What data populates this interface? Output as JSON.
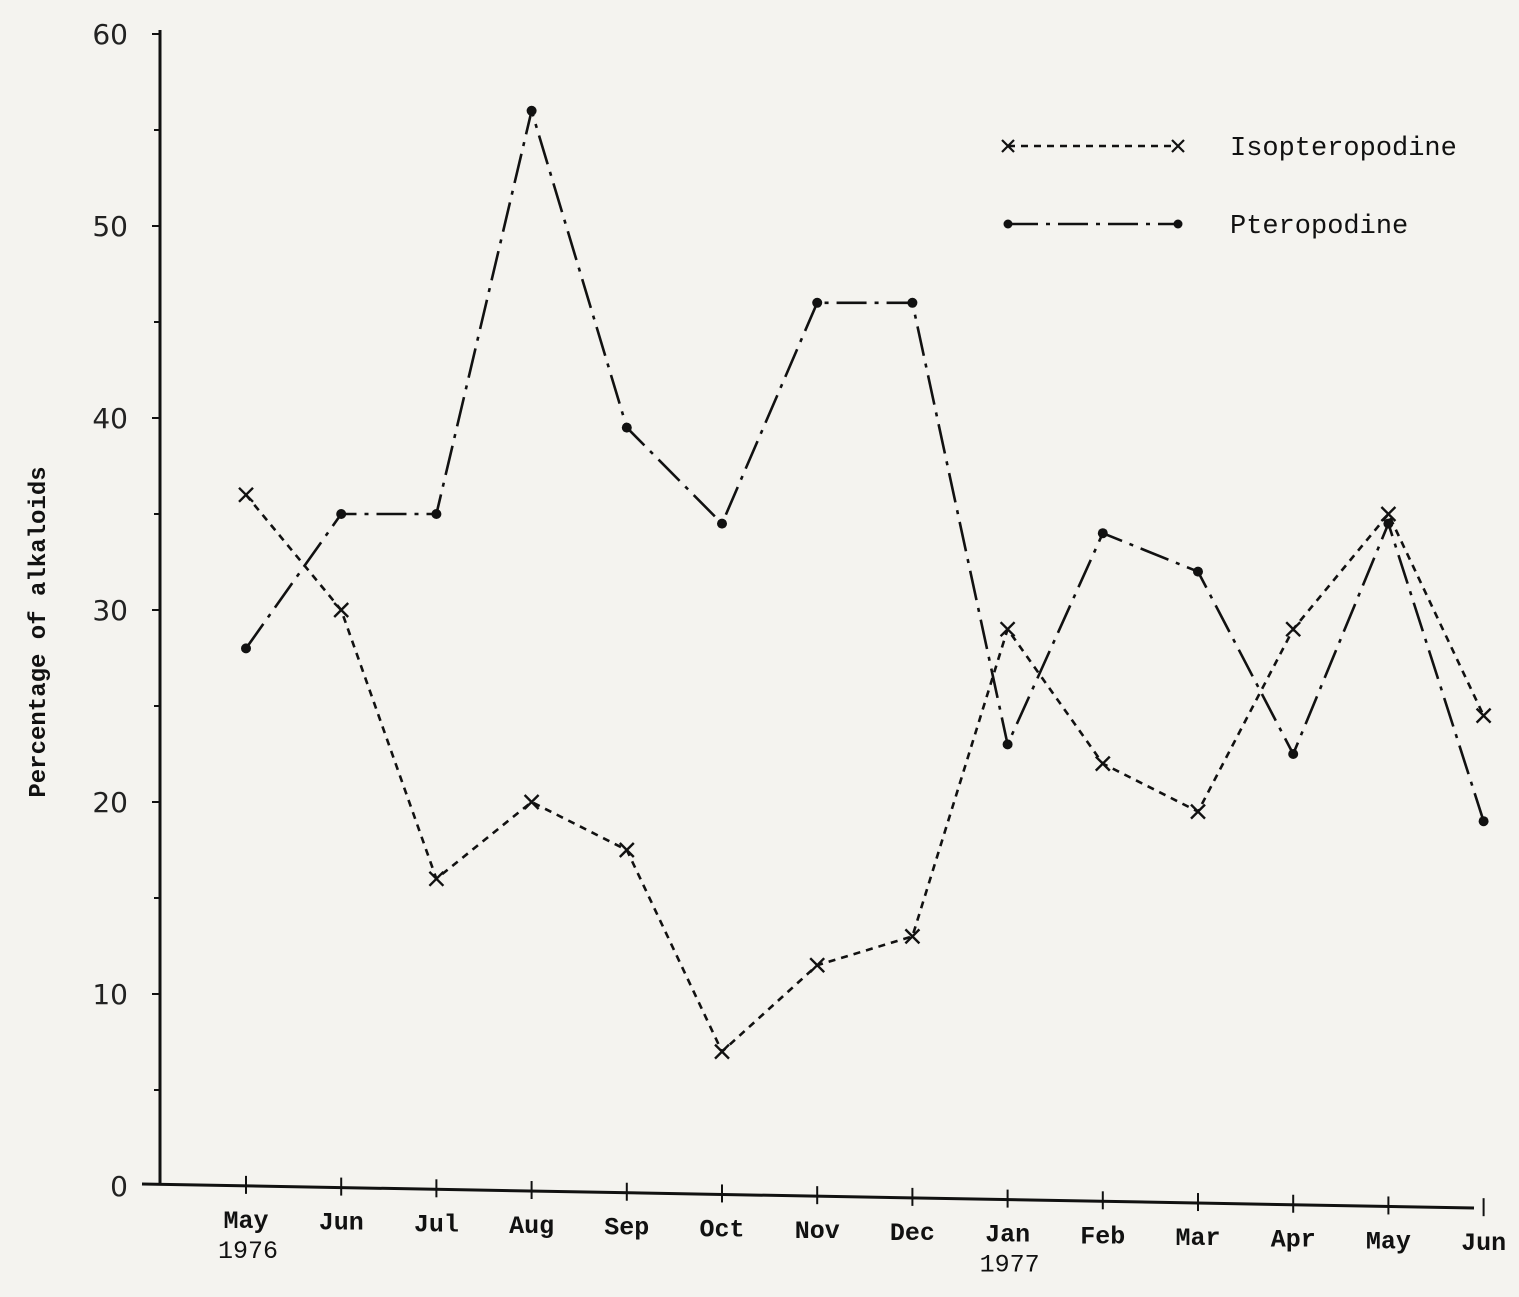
{
  "chart_data": {
    "type": "line",
    "title": "",
    "ylabel": "Percentage of alkaloids",
    "xlabel": "",
    "ylim": [
      0,
      60
    ],
    "yticks": [
      0,
      10,
      20,
      30,
      40,
      50,
      60
    ],
    "grid": false,
    "legend_position": "top-right",
    "categories": [
      {
        "month": "May",
        "year": "1976"
      },
      {
        "month": "Jun",
        "year": ""
      },
      {
        "month": "Jul",
        "year": ""
      },
      {
        "month": "Aug",
        "year": ""
      },
      {
        "month": "Sep",
        "year": ""
      },
      {
        "month": "Oct",
        "year": ""
      },
      {
        "month": "Nov",
        "year": ""
      },
      {
        "month": "Dec",
        "year": ""
      },
      {
        "month": "Jan",
        "year": "1977"
      },
      {
        "month": "Feb",
        "year": ""
      },
      {
        "month": "Mar",
        "year": ""
      },
      {
        "month": "Apr",
        "year": ""
      },
      {
        "month": "May",
        "year": ""
      },
      {
        "month": "Jun",
        "year": ""
      }
    ],
    "series": [
      {
        "name": "Isopteropodine",
        "marker": "x",
        "line_style": "dotted",
        "values": [
          36,
          30,
          16,
          20,
          17.5,
          7,
          11.5,
          13,
          29,
          22,
          19.5,
          29,
          35,
          24.5
        ]
      },
      {
        "name": "Pteropodine",
        "marker": "dot",
        "line_style": "dash-dot",
        "values": [
          28,
          35,
          35,
          56,
          39.5,
          34.5,
          46,
          46,
          23,
          34,
          32,
          22.5,
          34.5,
          19
        ]
      }
    ],
    "colors": {
      "ink": "#111111",
      "paper": "#f4f3ef"
    }
  }
}
